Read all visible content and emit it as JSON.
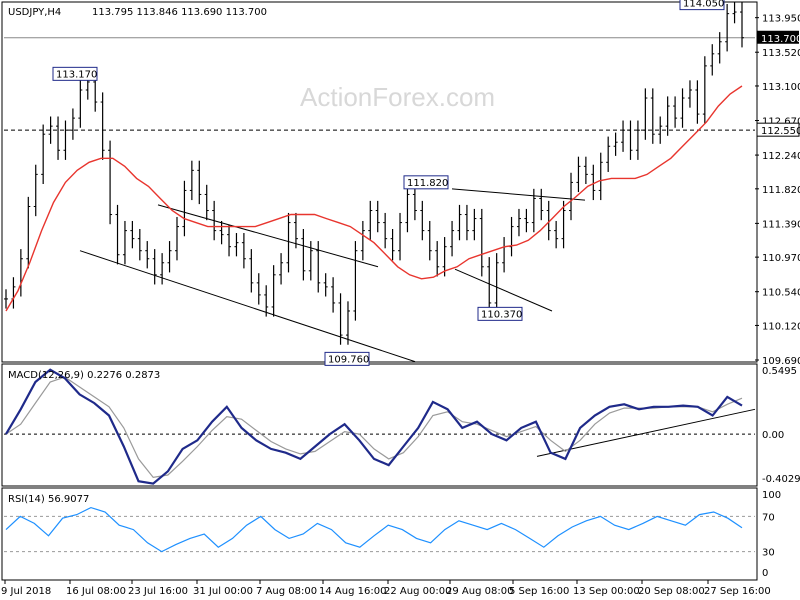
{
  "header": {
    "symbol": "USDJPY,H4",
    "ohlc": "113.795 113.846 113.690 113.700"
  },
  "watermark": "ActionForex.com",
  "colors": {
    "price": "#000000",
    "ma": "#e8352e",
    "macd": "#1f2a8a",
    "signal": "#9a9a9a",
    "rsi": "#1e90ff",
    "label_border": "#1f2a8a"
  },
  "chart_data": [
    {
      "type": "line",
      "panel": "price",
      "title": "USDJPY,H4",
      "ylim": [
        109.69,
        114.12
      ],
      "y_ticks": [
        113.95,
        113.52,
        113.1,
        112.67,
        112.24,
        111.82,
        111.39,
        110.97,
        110.54,
        110.12,
        109.69
      ],
      "x_ticks": [
        "9 Jul 2018",
        "16 Jul 08:00",
        "23 Jul 16:00",
        "31 Jul 00:00",
        "7 Aug 08:00",
        "14 Aug 16:00",
        "22 Aug 00:00",
        "29 Aug 08:00",
        "5 Sep 16:00",
        "13 Sep 00:00",
        "20 Sep 08:00",
        "27 Sep 16:00"
      ],
      "current_price": 113.7,
      "horizontal_level": 112.55,
      "annotations": [
        {
          "label": "113.170",
          "value": 113.17
        },
        {
          "label": "111.820",
          "value": 111.82
        },
        {
          "label": "110.370",
          "value": 110.37
        },
        {
          "label": "109.760",
          "value": 109.76
        },
        {
          "label": "114.050",
          "value": 114.05
        }
      ],
      "series": [
        {
          "values": [
            110.45,
            110.6,
            110.95,
            111.6,
            112.0,
            112.5,
            112.6,
            112.3,
            112.55,
            112.7,
            113.05,
            113.15,
            112.9,
            112.3,
            111.5,
            111.0,
            111.3,
            111.2,
            111.05,
            110.95,
            110.75,
            110.9,
            111.05,
            111.35,
            111.8,
            112.05,
            111.75,
            111.55,
            111.3,
            111.25,
            111.1,
            111.15,
            110.95,
            110.65,
            110.5,
            110.35,
            110.75,
            110.9,
            111.4,
            111.2,
            110.8,
            111.05,
            110.65,
            110.6,
            110.4,
            110.0,
            110.3,
            111.05,
            111.3,
            111.55,
            111.4,
            111.2,
            111.05,
            111.4,
            111.75,
            111.55,
            111.3,
            111.05,
            110.85,
            111.1,
            111.3,
            111.5,
            111.3,
            111.45,
            110.85,
            110.4,
            110.9,
            111.1,
            111.35,
            111.45,
            111.4,
            111.7,
            111.55,
            111.3,
            111.2,
            111.55,
            111.9,
            112.1,
            112.0,
            111.8,
            112.15,
            112.35,
            112.4,
            112.55,
            112.3,
            112.55,
            112.95,
            112.5,
            112.6,
            112.85,
            112.7,
            112.95,
            113.05,
            112.75,
            113.35,
            113.5,
            113.65,
            114.0,
            114.02,
            113.7
          ]
        },
        {
          "name": "MA",
          "values": [
            110.3,
            110.55,
            110.9,
            111.3,
            111.65,
            111.9,
            112.05,
            112.15,
            112.2,
            112.2,
            112.1,
            111.95,
            111.85,
            111.7,
            111.55,
            111.45,
            111.4,
            111.35,
            111.35,
            111.35,
            111.35,
            111.35,
            111.4,
            111.45,
            111.5,
            111.5,
            111.5,
            111.45,
            111.4,
            111.35,
            111.25,
            111.15,
            111.0,
            110.85,
            110.75,
            110.7,
            110.72,
            110.8,
            110.85,
            110.95,
            111.0,
            111.05,
            111.1,
            111.12,
            111.18,
            111.3,
            111.45,
            111.6,
            111.72,
            111.85,
            111.92,
            111.95,
            111.95,
            111.95,
            112.0,
            112.1,
            112.2,
            112.35,
            112.5,
            112.65,
            112.85,
            113.0,
            113.1
          ]
        }
      ]
    },
    {
      "type": "line",
      "panel": "macd",
      "title": "MACD(12,26,9) 0.2276 0.2873",
      "ylim": [
        -0.4029,
        0.5495
      ],
      "y_ticks": [
        0.5495,
        0.0,
        -0.4029
      ],
      "series": [
        {
          "name": "MACD",
          "values": [
            0.0,
            0.2,
            0.42,
            0.52,
            0.45,
            0.32,
            0.25,
            0.15,
            -0.1,
            -0.38,
            -0.4,
            -0.3,
            -0.12,
            -0.05,
            0.1,
            0.22,
            0.05,
            -0.05,
            -0.12,
            -0.15,
            -0.2,
            -0.1,
            0.0,
            0.08,
            -0.05,
            -0.2,
            -0.25,
            -0.1,
            0.05,
            0.26,
            0.2,
            0.05,
            0.1,
            0.0,
            -0.05,
            0.05,
            0.1,
            -0.15,
            -0.2,
            0.05,
            0.15,
            0.22,
            0.24,
            0.2,
            0.22,
            0.22,
            0.23,
            0.22,
            0.15,
            0.3,
            0.23
          ]
        },
        {
          "name": "Signal",
          "values": [
            0.0,
            0.08,
            0.25,
            0.42,
            0.46,
            0.38,
            0.3,
            0.22,
            0.05,
            -0.2,
            -0.35,
            -0.33,
            -0.22,
            -0.1,
            0.03,
            0.14,
            0.12,
            0.03,
            -0.06,
            -0.12,
            -0.16,
            -0.14,
            -0.06,
            0.02,
            0.0,
            -0.12,
            -0.2,
            -0.15,
            -0.02,
            0.15,
            0.18,
            0.1,
            0.08,
            0.03,
            -0.02,
            0.02,
            0.06,
            -0.05,
            -0.14,
            -0.05,
            0.08,
            0.17,
            0.21,
            0.21,
            0.21,
            0.22,
            0.22,
            0.22,
            0.18,
            0.24,
            0.29
          ]
        }
      ]
    },
    {
      "type": "line",
      "panel": "rsi",
      "title": "RSI(14) 56.9077",
      "ylim": [
        0,
        100
      ],
      "y_ticks": [
        100,
        70,
        30,
        0
      ],
      "series": [
        {
          "name": "RSI",
          "values": [
            55,
            70,
            62,
            48,
            68,
            72,
            80,
            75,
            60,
            55,
            40,
            30,
            38,
            45,
            50,
            35,
            45,
            60,
            70,
            55,
            45,
            50,
            62,
            55,
            40,
            35,
            48,
            60,
            55,
            45,
            40,
            55,
            65,
            60,
            55,
            62,
            55,
            45,
            35,
            48,
            58,
            65,
            70,
            60,
            55,
            62,
            70,
            65,
            60,
            72,
            75,
            68,
            57
          ]
        }
      ]
    }
  ]
}
